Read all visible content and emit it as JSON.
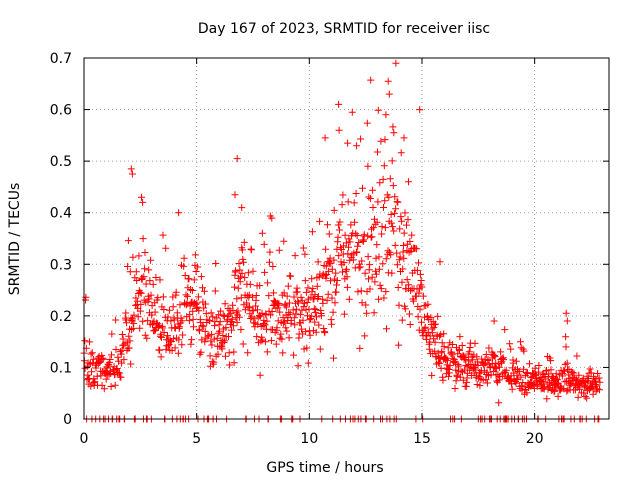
{
  "chart_data": {
    "type": "scatter",
    "title": "Day 167 of 2023, SRMTID for receiver iisc",
    "xlabel": "GPS time / hours",
    "ylabel": "SRMTID / TECUs",
    "xlim": [
      0,
      23.3
    ],
    "ylim": [
      0,
      0.7
    ],
    "x_ticks": [
      0,
      5,
      10,
      15,
      20
    ],
    "x_tick_labels": [
      "0",
      "5",
      "10",
      "15",
      "20"
    ],
    "y_ticks": [
      0,
      0.1,
      0.2,
      0.3,
      0.4,
      0.5,
      0.6,
      0.7
    ],
    "y_tick_labels": [
      "0",
      "0.1",
      "0.2",
      "0.3",
      "0.4",
      "0.5",
      "0.6",
      "0.7"
    ],
    "grid": true,
    "marker": "plus",
    "color": "#ff0000",
    "series": [
      {
        "name": "SRMTID",
        "generator": {
          "x_start": 0.0,
          "x_end": 22.9,
          "step_hours": 0.0167,
          "seed": 167,
          "zero_fraction": 0.09,
          "noise_fraction": 0.35,
          "profile": [
            [
              0.0,
              0.13
            ],
            [
              0.5,
              0.1
            ],
            [
              1.0,
              0.09
            ],
            [
              1.5,
              0.1
            ],
            [
              2.0,
              0.18
            ],
            [
              2.5,
              0.25
            ],
            [
              3.0,
              0.2
            ],
            [
              3.5,
              0.17
            ],
            [
              4.0,
              0.16
            ],
            [
              4.5,
              0.22
            ],
            [
              5.0,
              0.22
            ],
            [
              5.5,
              0.17
            ],
            [
              6.0,
              0.14
            ],
            [
              6.5,
              0.18
            ],
            [
              7.0,
              0.26
            ],
            [
              7.5,
              0.21
            ],
            [
              8.0,
              0.2
            ],
            [
              8.5,
              0.19
            ],
            [
              9.0,
              0.2
            ],
            [
              9.5,
              0.22
            ],
            [
              10.0,
              0.21
            ],
            [
              10.5,
              0.25
            ],
            [
              11.0,
              0.28
            ],
            [
              11.5,
              0.32
            ],
            [
              12.0,
              0.33
            ],
            [
              12.5,
              0.3
            ],
            [
              13.0,
              0.33
            ],
            [
              13.5,
              0.36
            ],
            [
              14.0,
              0.34
            ],
            [
              14.5,
              0.3
            ],
            [
              15.0,
              0.22
            ],
            [
              15.5,
              0.15
            ],
            [
              16.0,
              0.12
            ],
            [
              16.5,
              0.11
            ],
            [
              17.0,
              0.1
            ],
            [
              17.5,
              0.09
            ],
            [
              18.0,
              0.1
            ],
            [
              18.5,
              0.1
            ],
            [
              19.0,
              0.08
            ],
            [
              19.5,
              0.08
            ],
            [
              20.0,
              0.07
            ],
            [
              20.5,
              0.07
            ],
            [
              21.0,
              0.07
            ],
            [
              21.5,
              0.08
            ],
            [
              22.0,
              0.07
            ],
            [
              22.5,
              0.07
            ],
            [
              22.9,
              0.06
            ]
          ]
        },
        "peaks": [
          {
            "x": 13.5,
            "y": 0.655
          },
          {
            "x": 13.55,
            "y": 0.63
          },
          {
            "x": 11.3,
            "y": 0.61
          },
          {
            "x": 14.9,
            "y": 0.6
          },
          {
            "x": 13.4,
            "y": 0.59
          },
          {
            "x": 10.7,
            "y": 0.545
          },
          {
            "x": 14.2,
            "y": 0.545
          },
          {
            "x": 13.75,
            "y": 0.555
          },
          {
            "x": 6.8,
            "y": 0.505
          },
          {
            "x": 2.1,
            "y": 0.485
          },
          {
            "x": 2.15,
            "y": 0.475
          },
          {
            "x": 11.7,
            "y": 0.535
          },
          {
            "x": 12.1,
            "y": 0.53
          },
          {
            "x": 12.6,
            "y": 0.49
          },
          {
            "x": 14.4,
            "y": 0.46
          },
          {
            "x": 2.55,
            "y": 0.43
          },
          {
            "x": 2.6,
            "y": 0.42
          },
          {
            "x": 4.2,
            "y": 0.4
          },
          {
            "x": 6.7,
            "y": 0.435
          },
          {
            "x": 7.0,
            "y": 0.41
          },
          {
            "x": 15.8,
            "y": 0.305
          },
          {
            "x": 21.4,
            "y": 0.205
          },
          {
            "x": 21.45,
            "y": 0.19
          },
          {
            "x": 18.2,
            "y": 0.19
          }
        ]
      }
    ]
  }
}
